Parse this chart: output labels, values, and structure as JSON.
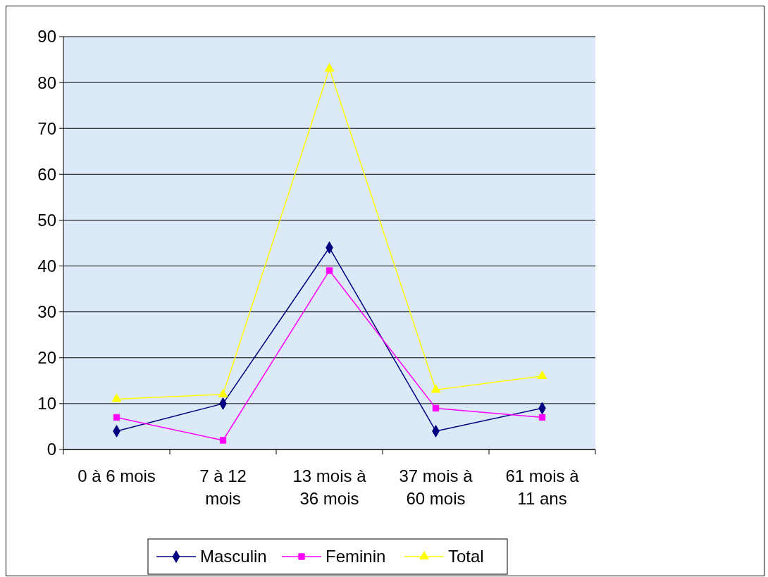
{
  "chart_data": {
    "type": "line",
    "categories": [
      "0 à 6 mois",
      "7 à 12 mois",
      "13 mois à 36 mois",
      "37 mois à 60 mois",
      "61 mois à 11 ans"
    ],
    "series": [
      {
        "name": "Masculin",
        "color": "#000080",
        "marker": "diamond",
        "values": [
          4,
          10,
          44,
          4,
          9
        ]
      },
      {
        "name": "Feminin",
        "color": "#ff00ff",
        "marker": "square",
        "values": [
          7,
          2,
          39,
          9,
          7
        ]
      },
      {
        "name": "Total",
        "color": "#ffff00",
        "marker": "triangle",
        "values": [
          11,
          12,
          83,
          13,
          16
        ]
      }
    ],
    "ylim": [
      0,
      90
    ],
    "yticks": [
      0,
      10,
      20,
      30,
      40,
      50,
      60,
      70,
      80,
      90
    ],
    "grid": "y",
    "legend": "bottom",
    "line_style": "solid"
  }
}
